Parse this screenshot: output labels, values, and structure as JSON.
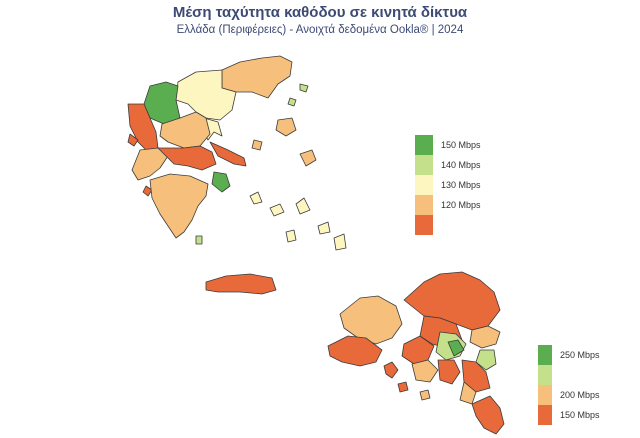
{
  "header": {
    "title": "Μέση ταχύτητα καθόδου σε κινητά δίκτυα",
    "subtitle": "Ελλάδα (Περιφέρειες) - Ανοιχτά δεδομένα Ookla® | 2024"
  },
  "colors": {
    "green": "#5aae4f",
    "light_green": "#c5e08b",
    "light_yellow": "#fdf6c0",
    "light_orange": "#f7bf7c",
    "orange": "#e8693a",
    "border": "#3b3b3b"
  },
  "legend_greece": {
    "items": [
      {
        "color": "#5aae4f",
        "label": "150 Mbps"
      },
      {
        "color": "#c5e08b",
        "label": "140 Mbps"
      },
      {
        "color": "#fdf6c0",
        "label": "130 Mbps"
      },
      {
        "color": "#f7bf7c",
        "label": "120 Mbps"
      },
      {
        "color": "#e8693a",
        "label": ""
      }
    ]
  },
  "legend_attica": {
    "items": [
      {
        "color": "#5aae4f",
        "label": "250 Mbps"
      },
      {
        "color": "#c5e08b",
        "label": ""
      },
      {
        "color": "#f7bf7c",
        "label": "200 Mbps"
      },
      {
        "color": "#e8693a",
        "label": "150 Mbps"
      }
    ]
  }
}
